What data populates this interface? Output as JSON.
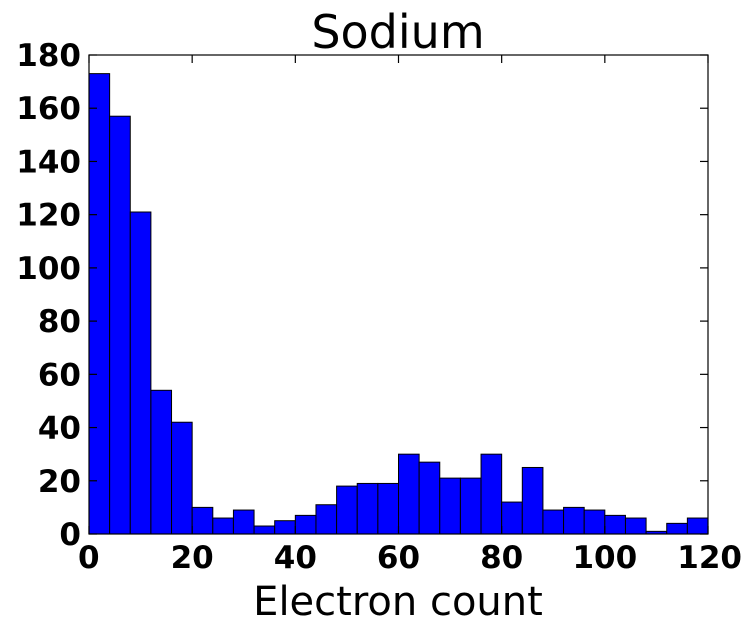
{
  "chart_data": {
    "type": "bar",
    "subtype": "histogram",
    "title": "Sodium",
    "xlabel": "Electron count",
    "ylabel": "",
    "xlim": [
      0,
      120
    ],
    "ylim": [
      0,
      180
    ],
    "bin_width": 4,
    "bin_edges": [
      0,
      4,
      8,
      12,
      16,
      20,
      24,
      28,
      32,
      36,
      40,
      44,
      48,
      52,
      56,
      60,
      64,
      68,
      72,
      76,
      80,
      84,
      88,
      92,
      96,
      100,
      104,
      108,
      112,
      116,
      120
    ],
    "values": [
      173,
      157,
      121,
      54,
      42,
      10,
      6,
      9,
      3,
      5,
      7,
      11,
      18,
      19,
      19,
      30,
      27,
      21,
      21,
      30,
      12,
      25,
      9,
      10,
      9,
      7,
      6,
      1,
      4,
      6
    ],
    "xticks": [
      "0",
      "20",
      "40",
      "60",
      "80",
      "100",
      "120"
    ],
    "yticks": [
      "0",
      "20",
      "40",
      "60",
      "80",
      "100",
      "120",
      "140",
      "160",
      "180"
    ],
    "bar_color": "#0000ff",
    "edge_color": "#000000",
    "grid": false,
    "legend": "none"
  }
}
